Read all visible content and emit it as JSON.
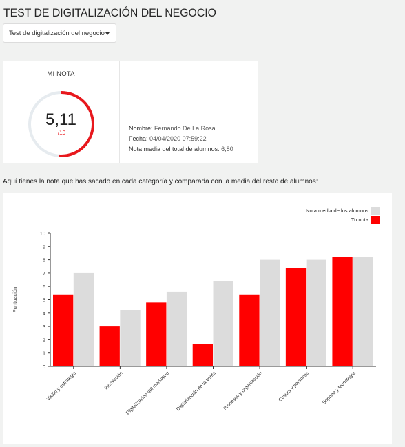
{
  "page": {
    "title": "TEST DE DIGITALIZACIÓN DEL NEGOCIO"
  },
  "selector": {
    "value": "Test de digitalización del negocio",
    "icon": "caret-down-icon"
  },
  "score": {
    "label": "MI NOTA",
    "value": "5,11",
    "max": "/10",
    "fraction": 0.511,
    "ring_color": "#e8181d",
    "track_color": "#e6ebef"
  },
  "info": {
    "name_label": "Nombre:",
    "name_value": "Fernando De La Rosa",
    "date_label": "Fecha:",
    "date_value": "04/04/2020 07:59:22",
    "avg_label": "Nota media del total de alumnos:",
    "avg_value": "6,80"
  },
  "intro_text": "Aquí tienes la nota que has sacado en cada categoría y comparada con la media del resto de alumnos:",
  "chart_data": {
    "type": "bar",
    "title": "",
    "xlabel": "",
    "ylabel": "Puntuación",
    "ylim": [
      0,
      10
    ],
    "yticks": [
      "0",
      "1",
      "2",
      "3",
      "4",
      "5",
      "6",
      "7",
      "8",
      "9",
      "10"
    ],
    "grid": false,
    "legend_position": "top-right",
    "categories": [
      "Visión y estrategia",
      "Innovación",
      "Digitalización del marketing",
      "Digitalización de la venta",
      "Procesos y organización",
      "Cultura y personas",
      "Soporte y tecnología"
    ],
    "series": [
      {
        "name": "Tu nota",
        "color": "#ff0000",
        "values": [
          5.4,
          3.0,
          4.8,
          1.7,
          5.4,
          7.4,
          8.2
        ]
      },
      {
        "name": "Nota media de los alumnos",
        "color": "#dcdcdc",
        "values": [
          7.0,
          4.2,
          5.6,
          6.4,
          8.0,
          8.0,
          8.2
        ]
      }
    ]
  }
}
